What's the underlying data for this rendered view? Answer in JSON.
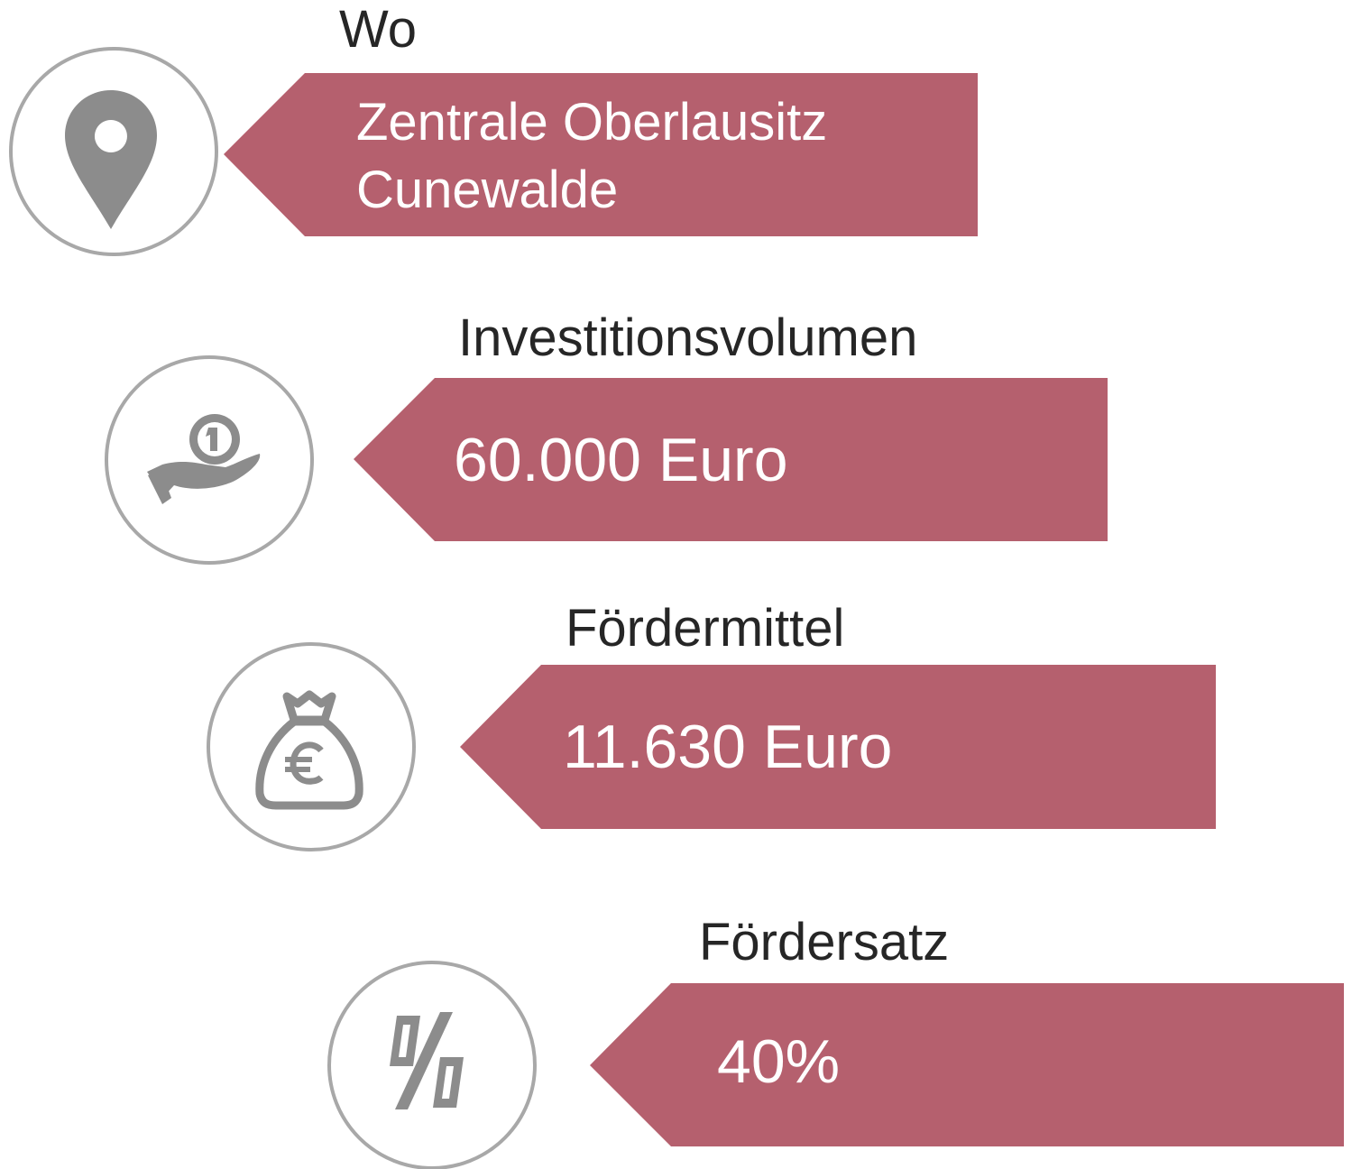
{
  "items": [
    {
      "label": "Wo",
      "value": [
        "Zentrale Oberlausitz",
        "Cunewalde"
      ]
    },
    {
      "label": "Investitionsvolumen",
      "value": [
        "60.000 Euro"
      ]
    },
    {
      "label": "Fördermittel",
      "value": [
        "11.630 Euro"
      ]
    },
    {
      "label": "Fördersatz",
      "value": [
        "40%"
      ]
    }
  ]
}
